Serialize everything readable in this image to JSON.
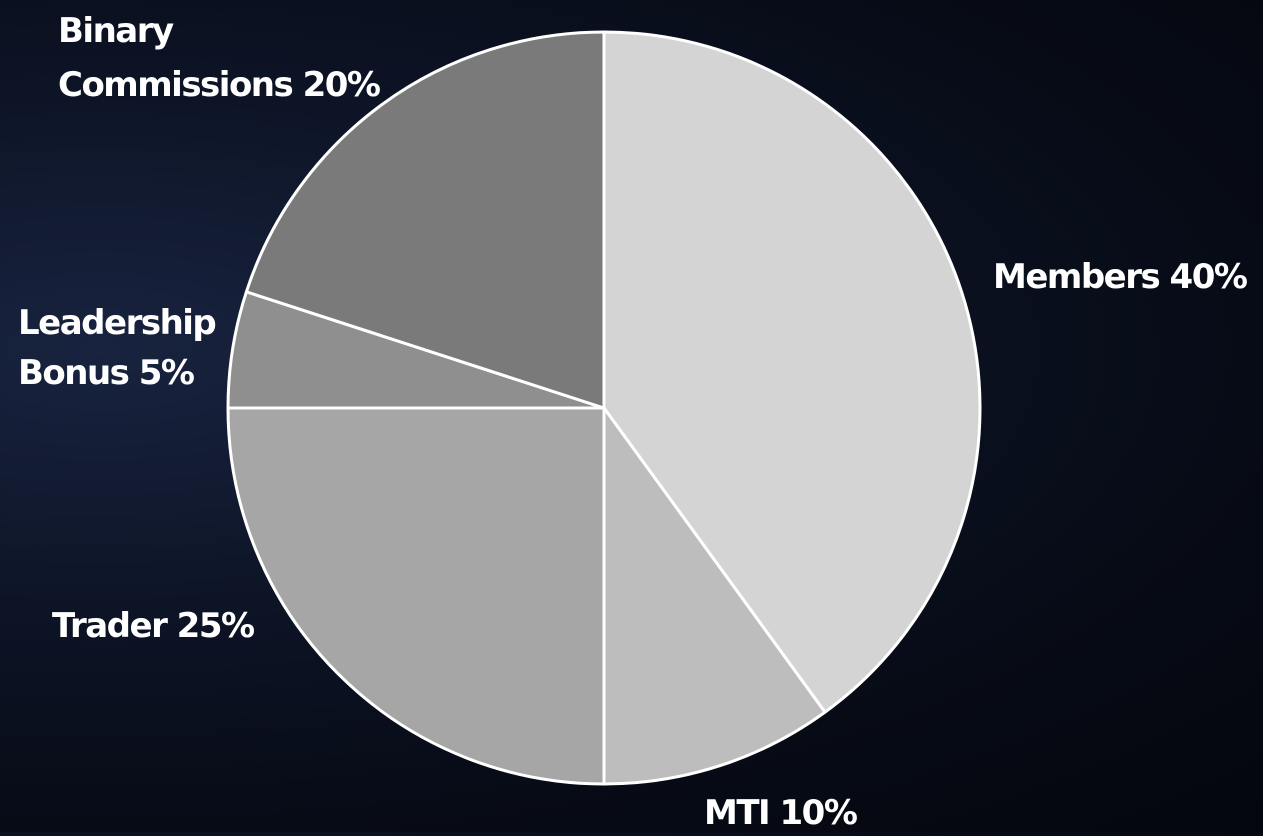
{
  "chart_data": {
    "type": "pie",
    "slices": [
      {
        "name": "Members",
        "value": 40,
        "color": "#d4d4d4",
        "label_lines": [
          "Members 40%"
        ]
      },
      {
        "name": "MTI",
        "value": 10,
        "color": "#bdbdbd",
        "label_lines": [
          "MTI 10%"
        ]
      },
      {
        "name": "Trader",
        "value": 25,
        "color": "#a6a6a6",
        "label_lines": [
          "Trader 25%"
        ]
      },
      {
        "name": "Leadership Bonus",
        "value": 5,
        "color": "#8f8f8f",
        "label_lines": [
          "Leadership",
          "Bonus 5%"
        ]
      },
      {
        "name": "Binary Commissions",
        "value": 20,
        "color": "#7a7a7a",
        "label_lines": [
          "Binary",
          "Commissions 20%"
        ]
      }
    ],
    "start": "12 o'clock",
    "direction": "clockwise",
    "slice_border_color": "#ffffff",
    "label_color": "#ffffff",
    "legend": "none"
  }
}
